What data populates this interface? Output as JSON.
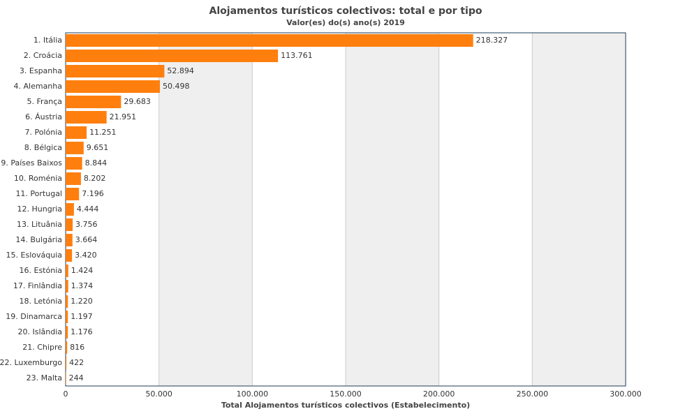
{
  "chart_data": {
    "type": "bar",
    "orientation": "horizontal",
    "title": "Alojamentos turísticos colectivos: total e por tipo",
    "subtitle": "Valor(es) do(s) ano(s) 2019",
    "x_label": "Total Alojamentos turísticos colectivos (Estabelecimento)",
    "categories": [
      "1. Itália",
      "2. Croácia",
      "3. Espanha",
      "4. Alemanha",
      "5. França",
      "6. Áustria",
      "7. Polónia",
      "8. Bélgica",
      "9. Países Baixos",
      "10. Roménia",
      "11. Portugal",
      "12. Hungria",
      "13. Lituânia",
      "14. Bulgária",
      "15. Eslováquia",
      "16. Estónia",
      "17. Finlândia",
      "18. Letónia",
      "19. Dinamarca",
      "20. Islândia",
      "21. Chipre",
      "22. Luxemburgo",
      "23. Malta"
    ],
    "values": [
      218327,
      113761,
      52894,
      50498,
      29683,
      21951,
      11251,
      9651,
      8844,
      8202,
      7196,
      4444,
      3756,
      3664,
      3420,
      1424,
      1374,
      1220,
      1197,
      1176,
      816,
      422,
      244
    ],
    "value_labels": [
      "218.327",
      "113.761",
      "52.894",
      "50.498",
      "29.683",
      "21.951",
      "11.251",
      "9.651",
      "8.844",
      "8.202",
      "7.196",
      "4.444",
      "3.756",
      "3.664",
      "3.420",
      "1.424",
      "1.374",
      "1.220",
      "1.197",
      "1.176",
      "816",
      "422",
      "244"
    ],
    "color": "#ff7f0e",
    "xlim": [
      0,
      300000
    ],
    "xticks": [
      0,
      {
        "value": 50000,
        "label": "50.000"
      },
      {
        "value": 100000,
        "label": "100.000"
      },
      {
        "value": 150000,
        "label": "150.000"
      },
      {
        "value": 200000,
        "label": "200.000"
      },
      {
        "value": 250000,
        "label": "250.000"
      },
      {
        "value": 300000,
        "label": "300.000"
      }
    ],
    "grid": true
  }
}
